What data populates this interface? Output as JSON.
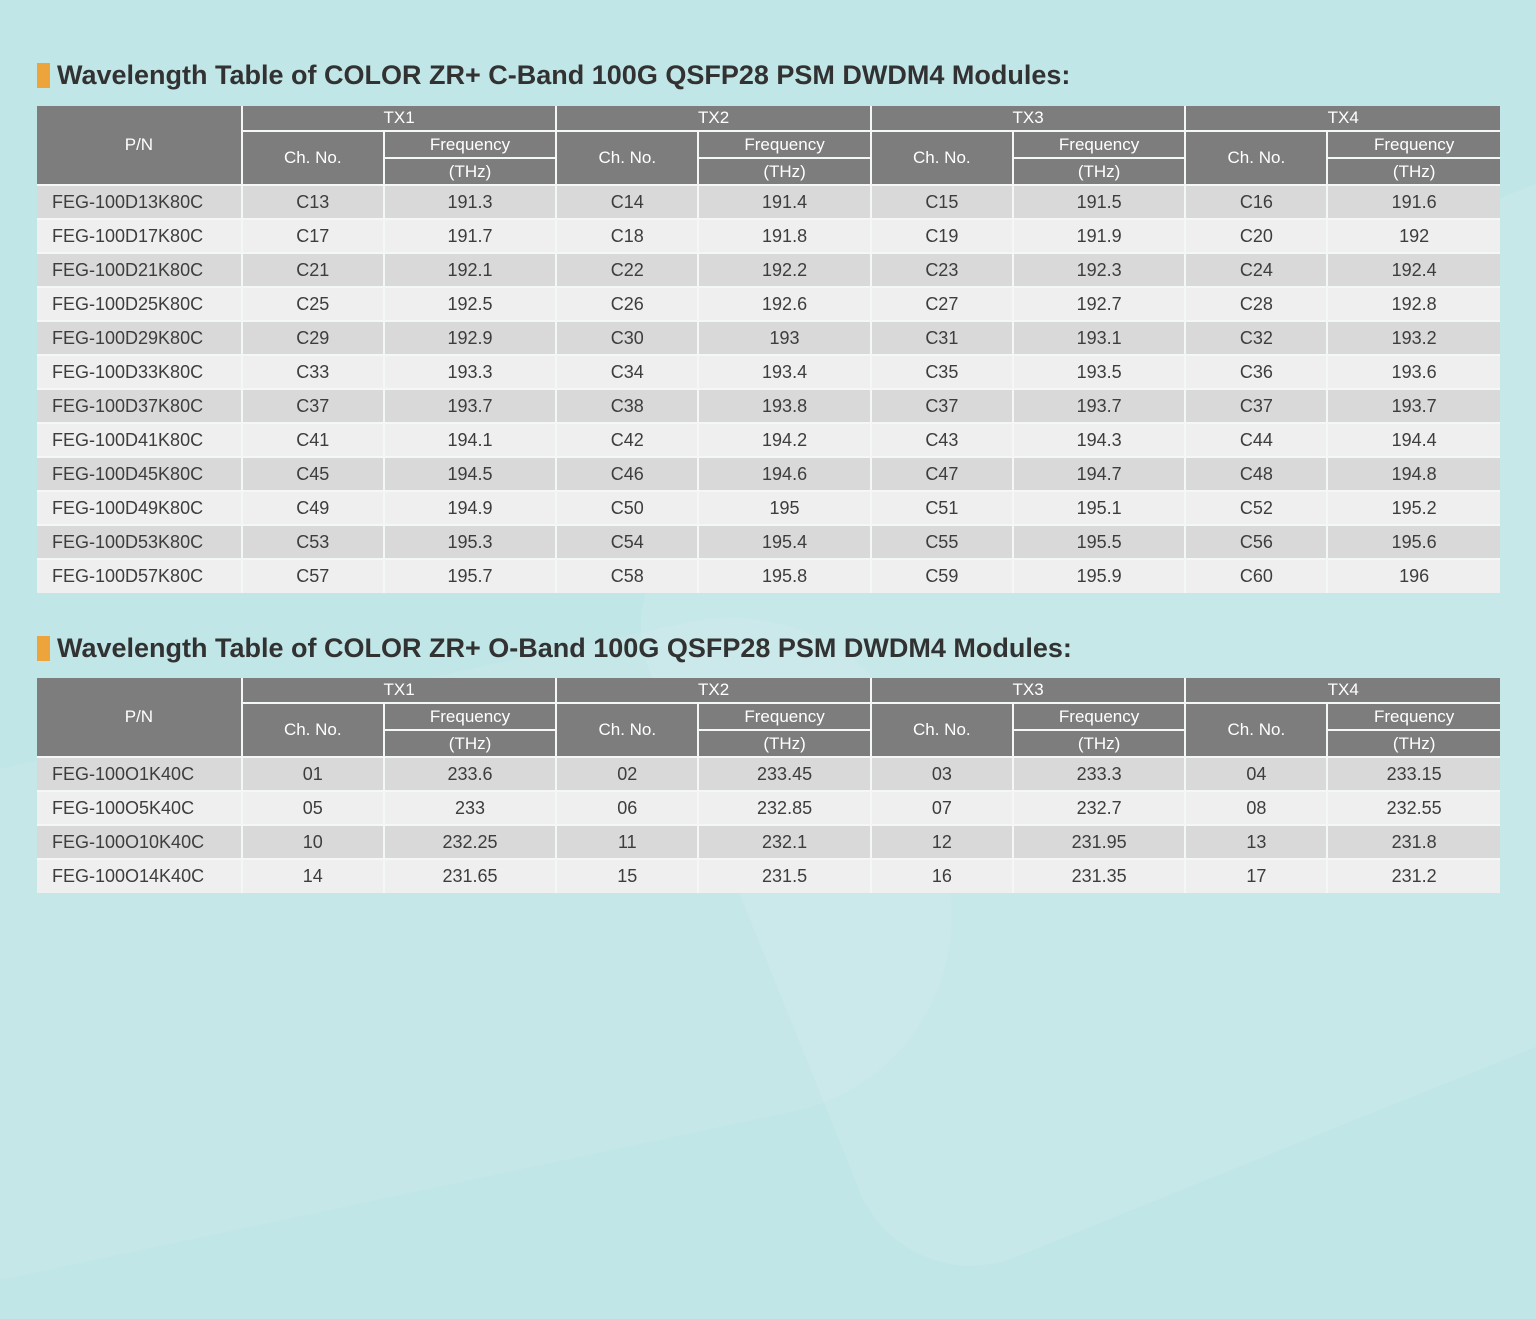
{
  "page": {
    "background_color": "#c1e6e7",
    "accent_color": "#eda43a",
    "header_bg_color": "#7d7d7d",
    "row_dark_color": "#d9d9d9",
    "row_light_color": "#efefef"
  },
  "tables": [
    {
      "title": "Wavelength Table of COLOR ZR+ C-Band 100G QSFP28 PSM DWDM4 Modules:",
      "groups": [
        "TX1",
        "TX2",
        "TX3",
        "TX4"
      ],
      "headers": {
        "pn": "P/N",
        "ch": "Ch. No.",
        "freq": "Frequency",
        "thz": "(THz)"
      },
      "rows": [
        [
          "FEG-100D13K80C",
          "C13",
          "191.3",
          "C14",
          "191.4",
          "C15",
          "191.5",
          "C16",
          "191.6"
        ],
        [
          "FEG-100D17K80C",
          "C17",
          "191.7",
          "C18",
          "191.8",
          "C19",
          "191.9",
          "C20",
          "192"
        ],
        [
          "FEG-100D21K80C",
          "C21",
          "192.1",
          "C22",
          "192.2",
          "C23",
          "192.3",
          "C24",
          "192.4"
        ],
        [
          "FEG-100D25K80C",
          "C25",
          "192.5",
          "C26",
          "192.6",
          "C27",
          "192.7",
          "C28",
          "192.8"
        ],
        [
          "FEG-100D29K80C",
          "C29",
          "192.9",
          "C30",
          "193",
          "C31",
          "193.1",
          "C32",
          "193.2"
        ],
        [
          "FEG-100D33K80C",
          "C33",
          "193.3",
          "C34",
          "193.4",
          "C35",
          "193.5",
          "C36",
          "193.6"
        ],
        [
          "FEG-100D37K80C",
          "C37",
          "193.7",
          "C38",
          "193.8",
          "C37",
          "193.7",
          "C37",
          "193.7"
        ],
        [
          "FEG-100D41K80C",
          "C41",
          "194.1",
          "C42",
          "194.2",
          "C43",
          "194.3",
          "C44",
          "194.4"
        ],
        [
          "FEG-100D45K80C",
          "C45",
          "194.5",
          "C46",
          "194.6",
          "C47",
          "194.7",
          "C48",
          "194.8"
        ],
        [
          "FEG-100D49K80C",
          "C49",
          "194.9",
          "C50",
          "195",
          "C51",
          "195.1",
          "C52",
          "195.2"
        ],
        [
          "FEG-100D53K80C",
          "C53",
          "195.3",
          "C54",
          "195.4",
          "C55",
          "195.5",
          "C56",
          "195.6"
        ],
        [
          "FEG-100D57K80C",
          "C57",
          "195.7",
          "C58",
          "195.8",
          "C59",
          "195.9",
          "C60",
          "196"
        ]
      ]
    },
    {
      "title": "Wavelength Table of COLOR ZR+ O-Band 100G QSFP28 PSM DWDM4 Modules:",
      "groups": [
        "TX1",
        "TX2",
        "TX3",
        "TX4"
      ],
      "headers": {
        "pn": "P/N",
        "ch": "Ch. No.",
        "freq": "Frequency",
        "thz": "(THz)"
      },
      "rows": [
        [
          "FEG-100O1K40C",
          "01",
          "233.6",
          "02",
          "233.45",
          "03",
          "233.3",
          "04",
          "233.15"
        ],
        [
          "FEG-100O5K40C",
          "05",
          "233",
          "06",
          "232.85",
          "07",
          "232.7",
          "08",
          "232.55"
        ],
        [
          "FEG-100O10K40C",
          "10",
          "232.25",
          "11",
          "232.1",
          "12",
          "231.95",
          "13",
          "231.8"
        ],
        [
          "FEG-100O14K40C",
          "14",
          "231.65",
          "15",
          "231.5",
          "16",
          "231.35",
          "17",
          "231.2"
        ]
      ]
    }
  ]
}
